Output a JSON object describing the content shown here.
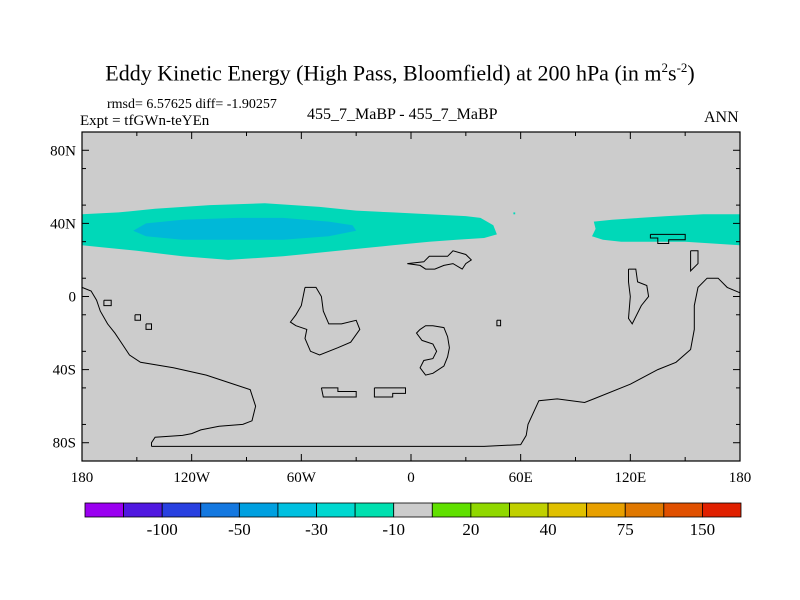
{
  "title": {
    "main": "Eddy Kinetic Energy (High Pass, Bloomfield) at 200 hPa (in m",
    "sup1": "2",
    "mid": "s",
    "sup2": "-2",
    "close": ")"
  },
  "stats_line": "rmsd= 6.57625 diff= -1.90257",
  "expt_line": "Expt = tfGWn-teYEn",
  "case_line": "455_7_MaBP - 455_7_MaBP",
  "season": "ANN",
  "chart_data": {
    "type": "map",
    "projection": "cylindrical equidistant",
    "lon_range": [
      -180,
      180
    ],
    "lat_range": [
      -90,
      90
    ],
    "x_ticks": [
      {
        "lon": -180,
        "label": "180"
      },
      {
        "lon": -120,
        "label": "120W"
      },
      {
        "lon": -60,
        "label": "60W"
      },
      {
        "lon": 0,
        "label": "0"
      },
      {
        "lon": 60,
        "label": "60E"
      },
      {
        "lon": 120,
        "label": "120E"
      },
      {
        "lon": 180,
        "label": "180"
      }
    ],
    "y_ticks": [
      {
        "lat": 80,
        "label": "80N"
      },
      {
        "lat": 40,
        "label": "40N"
      },
      {
        "lat": 0,
        "label": "0"
      },
      {
        "lat": -40,
        "label": "40S"
      },
      {
        "lat": -80,
        "label": "80S"
      }
    ],
    "background_color": "#cccccc",
    "filled_regions": [
      {
        "name": "band-west",
        "interval": "-30 to -10",
        "color": "#00d8b8",
        "polygon": [
          [
            -180,
            45
          ],
          [
            -160,
            46
          ],
          [
            -140,
            48
          ],
          [
            -110,
            50
          ],
          [
            -80,
            51
          ],
          [
            -50,
            49
          ],
          [
            -30,
            47
          ],
          [
            -10,
            46
          ],
          [
            10,
            45
          ],
          [
            30,
            44
          ],
          [
            38,
            43
          ],
          [
            45,
            39
          ],
          [
            47,
            34
          ],
          [
            40,
            32
          ],
          [
            25,
            31
          ],
          [
            10,
            30
          ],
          [
            -10,
            28
          ],
          [
            -40,
            25
          ],
          [
            -70,
            22
          ],
          [
            -100,
            20
          ],
          [
            -125,
            22
          ],
          [
            -150,
            25
          ],
          [
            -170,
            27
          ],
          [
            -180,
            28
          ]
        ]
      },
      {
        "name": "core-west",
        "interval": "-50 to -30",
        "color": "#00b8d8",
        "polygon": [
          [
            -145,
            40
          ],
          [
            -125,
            42
          ],
          [
            -95,
            43
          ],
          [
            -70,
            43
          ],
          [
            -45,
            41
          ],
          [
            -32,
            39
          ],
          [
            -30,
            36
          ],
          [
            -45,
            33
          ],
          [
            -70,
            31
          ],
          [
            -100,
            31
          ],
          [
            -125,
            31
          ],
          [
            -145,
            33
          ],
          [
            -152,
            36
          ]
        ]
      },
      {
        "name": "band-east",
        "interval": "-30 to -10",
        "color": "#00d8b8",
        "polygon": [
          [
            100,
            41
          ],
          [
            110,
            42
          ],
          [
            125,
            43
          ],
          [
            140,
            44
          ],
          [
            160,
            45
          ],
          [
            180,
            45
          ],
          [
            180,
            28
          ],
          [
            165,
            29
          ],
          [
            150,
            30
          ],
          [
            130,
            30
          ],
          [
            115,
            30
          ],
          [
            105,
            31
          ],
          [
            99,
            33
          ],
          [
            101,
            37
          ]
        ]
      },
      {
        "name": "speck",
        "interval": "-30 to -10",
        "color": "#00d8b8",
        "polygon": [
          [
            56,
            46
          ],
          [
            57,
            46
          ],
          [
            57,
            45
          ],
          [
            56,
            45
          ]
        ]
      }
    ],
    "outlines": [
      {
        "name": "pacific-coast",
        "points": [
          [
            -180,
            5
          ],
          [
            -175,
            3
          ],
          [
            -172,
            -2
          ],
          [
            -170,
            -8
          ],
          [
            -166,
            -15
          ],
          [
            -162,
            -20
          ],
          [
            -158,
            -26
          ],
          [
            -154,
            -32
          ],
          [
            -148,
            -36
          ],
          [
            -130,
            -39
          ],
          [
            -112,
            -43
          ],
          [
            -100,
            -47
          ],
          [
            -88,
            -51
          ],
          [
            -85,
            -60
          ],
          [
            -87,
            -68
          ],
          [
            -92,
            -70
          ],
          [
            -105,
            -71
          ],
          [
            -115,
            -73
          ],
          [
            -120,
            -75
          ],
          [
            -125,
            -76
          ],
          [
            -140,
            -77
          ],
          [
            -142,
            -80
          ],
          [
            -142,
            -82
          ]
        ]
      },
      {
        "name": "antarctica-edge",
        "points": [
          [
            -142,
            -82
          ],
          [
            -100,
            -82
          ],
          [
            -60,
            -82
          ],
          [
            0,
            -82
          ],
          [
            40,
            -82
          ],
          [
            60,
            -81
          ],
          [
            63,
            -76
          ],
          [
            64,
            -70
          ],
          [
            70,
            -57
          ],
          [
            80,
            -56
          ],
          [
            95,
            -58
          ],
          [
            100,
            -56
          ],
          [
            120,
            -48
          ],
          [
            135,
            -40
          ],
          [
            145,
            -36
          ],
          [
            153,
            -29
          ],
          [
            155,
            -18
          ],
          [
            155,
            -5
          ],
          [
            157,
            5
          ],
          [
            162,
            10
          ],
          [
            168,
            10
          ],
          [
            173,
            5
          ],
          [
            180,
            2
          ]
        ]
      },
      {
        "name": "island-a",
        "points": [
          [
            -168,
            -2
          ],
          [
            -164,
            -2
          ],
          [
            -164,
            -5
          ],
          [
            -168,
            -5
          ],
          [
            -168,
            -2
          ]
        ]
      },
      {
        "name": "island-b",
        "points": [
          [
            -151,
            -10
          ],
          [
            -148,
            -10
          ],
          [
            -148,
            -13
          ],
          [
            -151,
            -13
          ],
          [
            -151,
            -10
          ]
        ]
      },
      {
        "name": "island-c",
        "points": [
          [
            -145,
            -15
          ],
          [
            -142,
            -15
          ],
          [
            -142,
            -18
          ],
          [
            -145,
            -18
          ],
          [
            -145,
            -15
          ]
        ]
      },
      {
        "name": "block-mid",
        "points": [
          [
            -58,
            5
          ],
          [
            -52,
            5
          ],
          [
            -49,
            0
          ],
          [
            -48,
            -8
          ],
          [
            -45,
            -15
          ],
          [
            -38,
            -15
          ],
          [
            -30,
            -13
          ],
          [
            -28,
            -18
          ],
          [
            -33,
            -25
          ],
          [
            -40,
            -28
          ],
          [
            -50,
            -32
          ],
          [
            -55,
            -30
          ],
          [
            -58,
            -23
          ],
          [
            -57,
            -18
          ],
          [
            -63,
            -16
          ],
          [
            -66,
            -14
          ],
          [
            -63,
            -10
          ],
          [
            -60,
            -5
          ],
          [
            -58,
            5
          ]
        ]
      },
      {
        "name": "block-africa",
        "points": [
          [
            5,
            -18
          ],
          [
            8,
            -16
          ],
          [
            12,
            -16
          ],
          [
            18,
            -17
          ],
          [
            20,
            -22
          ],
          [
            21,
            -28
          ],
          [
            20,
            -33
          ],
          [
            18,
            -38
          ],
          [
            12,
            -42
          ],
          [
            8,
            -43
          ],
          [
            5,
            -39
          ],
          [
            7,
            -35
          ],
          [
            12,
            -34
          ],
          [
            14,
            -30
          ],
          [
            12,
            -26
          ],
          [
            6,
            -24
          ],
          [
            3,
            -20
          ],
          [
            5,
            -18
          ]
        ]
      },
      {
        "name": "strip-left",
        "points": [
          [
            -49,
            -50
          ],
          [
            -40,
            -50
          ],
          [
            -40,
            -52
          ],
          [
            -30,
            -52
          ],
          [
            -30,
            -55
          ],
          [
            -48,
            -55
          ],
          [
            -49,
            -50
          ]
        ]
      },
      {
        "name": "strip-right",
        "points": [
          [
            -20,
            -50
          ],
          [
            -3,
            -50
          ],
          [
            -3,
            -53
          ],
          [
            -10,
            -53
          ],
          [
            -10,
            -55
          ],
          [
            -20,
            -55
          ],
          [
            -20,
            -52
          ],
          [
            -20,
            -50
          ]
        ]
      },
      {
        "name": "ring-top",
        "points": [
          [
            -2,
            18
          ],
          [
            7,
            19
          ],
          [
            10,
            22
          ],
          [
            20,
            22
          ],
          [
            23,
            25
          ],
          [
            30,
            23
          ],
          [
            33,
            20
          ],
          [
            30,
            18
          ],
          [
            28,
            15
          ],
          [
            23,
            18
          ],
          [
            18,
            17
          ],
          [
            13,
            15
          ],
          [
            8,
            15
          ],
          [
            5,
            17
          ],
          [
            -2,
            18
          ]
        ]
      },
      {
        "name": "asia-patch",
        "points": [
          [
            119,
            15
          ],
          [
            123,
            15
          ],
          [
            124,
            8
          ],
          [
            129,
            6
          ],
          [
            130,
            0
          ],
          [
            126,
            -5
          ],
          [
            121,
            -15
          ],
          [
            119,
            -12
          ],
          [
            120,
            0
          ],
          [
            119,
            8
          ],
          [
            119,
            15
          ]
        ]
      },
      {
        "name": "box-east",
        "points": [
          [
            131,
            34
          ],
          [
            150,
            34
          ],
          [
            150,
            31
          ],
          [
            141,
            31
          ],
          [
            141,
            29
          ],
          [
            135,
            29
          ],
          [
            135,
            32
          ],
          [
            131,
            32
          ],
          [
            131,
            34
          ]
        ]
      },
      {
        "name": "nub-east",
        "points": [
          [
            153,
            25
          ],
          [
            157,
            25
          ],
          [
            157,
            18
          ],
          [
            153,
            14
          ],
          [
            153,
            25
          ]
        ]
      },
      {
        "name": "speck-c",
        "points": [
          [
            47,
            -13
          ],
          [
            49,
            -13
          ],
          [
            49,
            -16
          ],
          [
            47,
            -16
          ],
          [
            47,
            -13
          ]
        ]
      }
    ],
    "colorbar": {
      "colors": [
        "#9a00f0",
        "#5018e0",
        "#2840e0",
        "#1478e0",
        "#00a0e0",
        "#00c0e0",
        "#00d8d0",
        "#00e0b0",
        "#cccccc",
        "#60e000",
        "#90d800",
        "#c0d000",
        "#e0c000",
        "#e8a000",
        "#e07800",
        "#e05000",
        "#e02000"
      ],
      "labels": [
        {
          "after_box": 2,
          "text": "-100"
        },
        {
          "after_box": 4,
          "text": "-50"
        },
        {
          "after_box": 6,
          "text": "-30"
        },
        {
          "after_box": 8,
          "text": "-10"
        },
        {
          "after_box": 10,
          "text": "20"
        },
        {
          "after_box": 12,
          "text": "40"
        },
        {
          "after_box": 14,
          "text": "75"
        },
        {
          "after_box": 16,
          "text": "150"
        }
      ]
    }
  }
}
